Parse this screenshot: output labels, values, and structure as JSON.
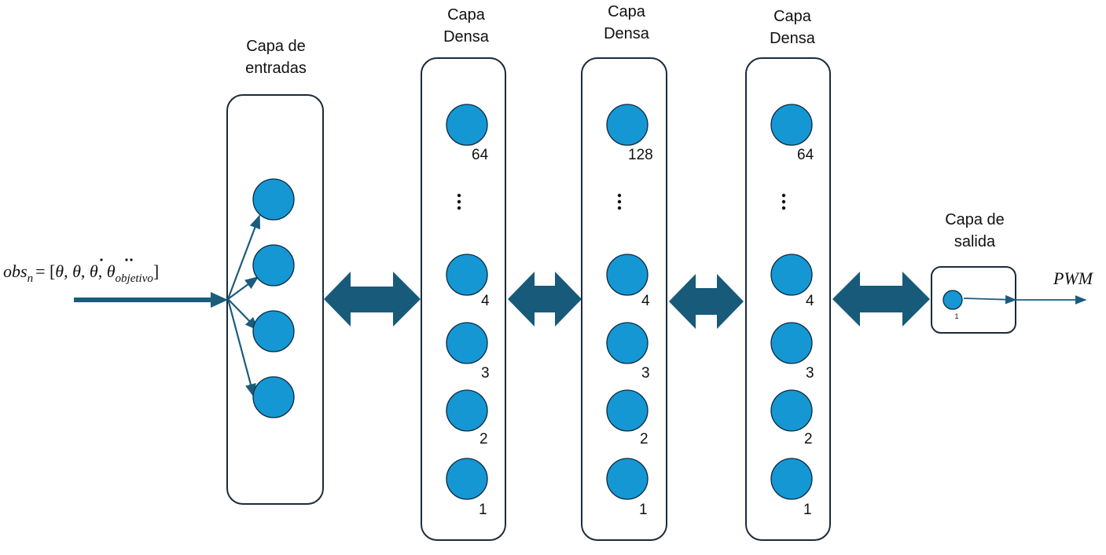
{
  "input": {
    "formula_base": "obs",
    "formula_sub": "n",
    "formula_eq": "= [",
    "formula_theta1": "θ",
    "formula_comma1": ", ",
    "formula_theta2": "θ",
    "formula_comma2": ", ",
    "formula_theta3": "θ",
    "formula_comma3": ", ",
    "formula_theta4": "θ",
    "formula_sub4": "objetivo",
    "formula_close": "]"
  },
  "layers": {
    "input_layer": {
      "title_line1": "Capa de",
      "title_line2": "entradas"
    },
    "dense1": {
      "title_line1": "Capa",
      "title_line2": "Densa",
      "labels": [
        "64",
        "4",
        "3",
        "2",
        "1"
      ]
    },
    "dense2": {
      "title_line1": "Capa",
      "title_line2": "Densa",
      "labels": [
        "128",
        "4",
        "3",
        "2",
        "1"
      ]
    },
    "dense3": {
      "title_line1": "Capa",
      "title_line2": "Densa",
      "labels": [
        "64",
        "4",
        "3",
        "2",
        "1"
      ]
    },
    "output_layer": {
      "title_line1": "Capa de",
      "title_line2": "salida",
      "label": "1"
    }
  },
  "output": {
    "label": "PWM"
  },
  "colors": {
    "node": "#1597d4",
    "arrow": "#175a7a",
    "box_stroke": "#1a2b3c"
  }
}
